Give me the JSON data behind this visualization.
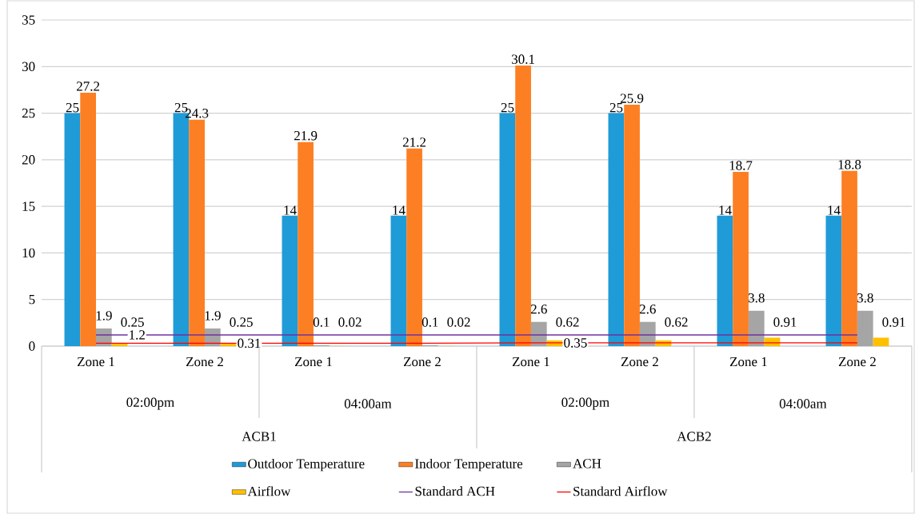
{
  "chart_data": {
    "type": "bar",
    "categories": [
      "Zone 1",
      "Zone 2",
      "Zone 1",
      "Zone 2",
      "Zone 1",
      "Zone 2",
      "Zone 1",
      "Zone 2"
    ],
    "annotations": [
      "02:00pm",
      "04:00am",
      "02:00pm",
      "04:00am",
      "ACB1",
      "ACB2",
      {
        "text": "1.2",
        "y": 1.2
      },
      {
        "text": "0.31",
        "y": 0.31
      },
      {
        "text": "0.35",
        "y": 0.35
      }
    ],
    "series": [
      {
        "name": "Outdoor Temperature",
        "color": "#1f9bd7",
        "values": [
          25,
          25,
          14,
          14,
          25,
          25,
          14,
          14
        ],
        "value_labels": [
          "25",
          "25",
          "14",
          "14",
          "25",
          "25",
          "14",
          "14"
        ]
      },
      {
        "name": "Indoor Temperature",
        "color": "#fd7f23",
        "values": [
          27.2,
          24.3,
          21.9,
          21.2,
          30.1,
          25.9,
          18.7,
          18.8
        ],
        "value_labels": [
          "27.2",
          "24.3",
          "21.9",
          "21.2",
          "30.1",
          "25.9",
          "18.7",
          "18.8"
        ]
      },
      {
        "name": "ACH",
        "color": "#a5a5a5",
        "values": [
          1.9,
          1.9,
          0.1,
          0.1,
          2.6,
          2.6,
          3.8,
          3.8
        ],
        "value_labels": [
          "1.9",
          "1.9",
          "0.1",
          "0.1",
          "2.6",
          "2.6",
          "3.8",
          "3.8"
        ]
      },
      {
        "name": "Airflow",
        "color": "#ffc000",
        "values": [
          0.25,
          0.25,
          0.02,
          0.02,
          0.62,
          0.62,
          0.91,
          0.91
        ],
        "value_labels": [
          "0.25",
          "0.25",
          "0.02",
          "0.02",
          "0.62",
          "0.62",
          "0.91",
          "0.91"
        ]
      },
      {
        "name": "Standard ACH",
        "type": "line",
        "color": "#7030a0",
        "values": [
          1.2,
          1.2,
          1.2,
          1.2,
          1.2,
          1.2,
          1.2,
          1.2
        ]
      },
      {
        "name": "Standard Airflow",
        "type": "line",
        "color": "#ff0000",
        "values": [
          0.31,
          0.31,
          0.31,
          0.31,
          0.35,
          0.35,
          0.35,
          0.35
        ]
      }
    ],
    "ylim": [
      0,
      35
    ],
    "yticks": [
      0,
      5,
      10,
      15,
      20,
      25,
      30,
      35
    ],
    "grid": "y",
    "legend": "bottom"
  }
}
